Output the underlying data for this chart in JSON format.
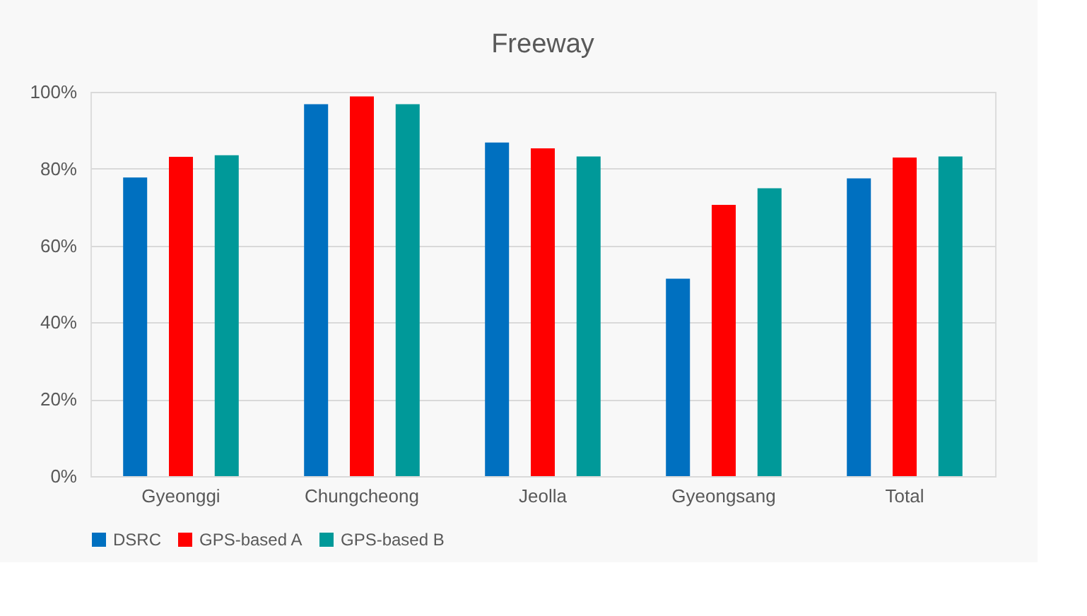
{
  "chart_data": {
    "type": "bar",
    "title": "Freeway",
    "categories": [
      "Gyeonggi",
      "Chungcheong",
      "Jeolla",
      "Gyeongsang",
      "Total"
    ],
    "series": [
      {
        "name": "DSRC",
        "color": "#0070c0",
        "values": [
          77.7,
          96.8,
          86.8,
          51.4,
          77.5
        ]
      },
      {
        "name": "GPS-based A",
        "color": "#ff0000",
        "values": [
          83.1,
          98.8,
          85.3,
          70.6,
          82.9
        ]
      },
      {
        "name": "GPS-based B",
        "color": "#009999",
        "values": [
          83.5,
          96.8,
          83.2,
          74.9,
          83.2
        ]
      }
    ],
    "ylim": [
      0,
      100
    ],
    "yticks": [
      {
        "value": 0,
        "label": "0%"
      },
      {
        "value": 20,
        "label": "20%"
      },
      {
        "value": 40,
        "label": "40%"
      },
      {
        "value": 60,
        "label": "60%"
      },
      {
        "value": 80,
        "label": "80%"
      },
      {
        "value": 100,
        "label": "100%"
      }
    ],
    "grid": "y",
    "legend": "bottom"
  }
}
